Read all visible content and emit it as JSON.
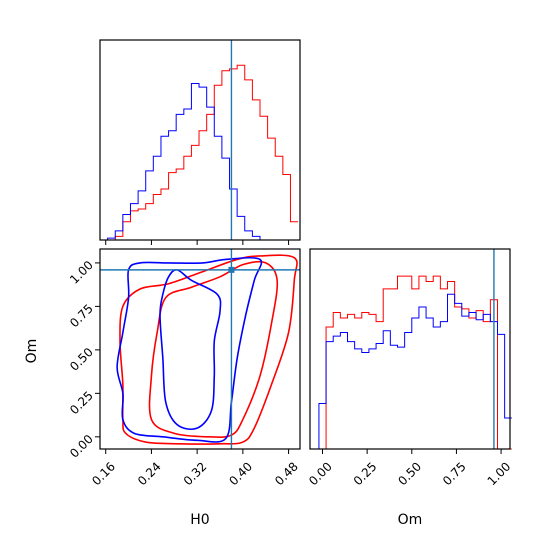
{
  "chart_data": {
    "type": "corner",
    "colors": {
      "red_series": "#ff0000",
      "blue_series": "#0000ff",
      "truth": "#1f77b4"
    },
    "truth": {
      "H0": 0.38,
      "Om": 0.96
    },
    "panels": [
      {
        "id": "H0-marginal",
        "type": "histogram",
        "xlim": [
          0.15,
          0.5
        ],
        "bin_edges": [
          0.15,
          0.1633,
          0.1767,
          0.19,
          0.2033,
          0.2167,
          0.23,
          0.2433,
          0.2567,
          0.27,
          0.2833,
          0.2967,
          0.31,
          0.3233,
          0.3367,
          0.35,
          0.3633,
          0.3767,
          0.39,
          0.4033,
          0.4167,
          0.43,
          0.4433,
          0.4567,
          0.47,
          0.4833,
          0.4967
        ],
        "series": [
          {
            "color": "red",
            "values": [
              0.0,
              0.0,
              0.02,
              0.1,
              0.16,
              0.17,
              0.2,
              0.25,
              0.28,
              0.37,
              0.39,
              0.46,
              0.52,
              0.6,
              0.69,
              0.85,
              0.93,
              0.94,
              0.96,
              0.88,
              0.77,
              0.68,
              0.56,
              0.46,
              0.36,
              0.1
            ]
          },
          {
            "color": "blue",
            "values": [
              0.0,
              0.01,
              0.05,
              0.14,
              0.2,
              0.27,
              0.38,
              0.46,
              0.57,
              0.6,
              0.69,
              0.72,
              0.86,
              0.84,
              0.73,
              0.57,
              0.45,
              0.28,
              0.13,
              0.05,
              0.02,
              0.0,
              0.0,
              0.0,
              0.0,
              0.0
            ]
          }
        ]
      },
      {
        "id": "H0-Om-joint",
        "type": "contour",
        "xlabel": "H0",
        "ylabel": "Om",
        "xlim": [
          0.15,
          0.5
        ],
        "ylim": [
          -0.07,
          1.08
        ],
        "xticks": [
          "0.16",
          "0.24",
          "0.32",
          "0.40",
          "0.48"
        ],
        "xtick_values": [
          0.16,
          0.24,
          0.32,
          0.4,
          0.48
        ],
        "yticks": [
          "0.00",
          "0.25",
          "0.50",
          "0.75",
          "1.00"
        ],
        "ytick_values": [
          0.0,
          0.25,
          0.5,
          0.75,
          1.0
        ],
        "contours": [
          {
            "color": "red",
            "level": "outer",
            "points": [
              [
                0.195,
                0.02
              ],
              [
                0.23,
                -0.03
              ],
              [
                0.29,
                -0.04
              ],
              [
                0.36,
                -0.04
              ],
              [
                0.4,
                -0.03
              ],
              [
                0.42,
                0.05
              ],
              [
                0.45,
                0.3
              ],
              [
                0.48,
                0.6
              ],
              [
                0.49,
                0.9
              ],
              [
                0.49,
                1.03
              ],
              [
                0.43,
                1.04
              ],
              [
                0.39,
                1.02
              ],
              [
                0.33,
                0.95
              ],
              [
                0.27,
                0.88
              ],
              [
                0.22,
                0.85
              ],
              [
                0.19,
                0.75
              ],
              [
                0.185,
                0.55
              ],
              [
                0.19,
                0.3
              ],
              [
                0.19,
                0.1
              ],
              [
                0.195,
                0.02
              ]
            ]
          },
          {
            "color": "red",
            "level": "inner",
            "points": [
              [
                0.24,
                0.1
              ],
              [
                0.28,
                0.02
              ],
              [
                0.34,
                0.0
              ],
              [
                0.38,
                0.01
              ],
              [
                0.4,
                0.1
              ],
              [
                0.43,
                0.35
              ],
              [
                0.45,
                0.65
              ],
              [
                0.46,
                0.9
              ],
              [
                0.44,
                1.0
              ],
              [
                0.4,
                0.99
              ],
              [
                0.36,
                0.92
              ],
              [
                0.31,
                0.86
              ],
              [
                0.265,
                0.8
              ],
              [
                0.25,
                0.6
              ],
              [
                0.24,
                0.35
              ],
              [
                0.24,
                0.1
              ]
            ]
          },
          {
            "color": "blue",
            "level": "outer",
            "points": [
              [
                0.19,
                0.1
              ],
              [
                0.21,
                0.02
              ],
              [
                0.26,
                0.0
              ],
              [
                0.32,
                -0.02
              ],
              [
                0.37,
                -0.01
              ],
              [
                0.38,
                0.2
              ],
              [
                0.39,
                0.45
              ],
              [
                0.405,
                0.7
              ],
              [
                0.42,
                0.9
              ],
              [
                0.43,
                1.02
              ],
              [
                0.37,
                1.02
              ],
              [
                0.33,
                1.0
              ],
              [
                0.27,
                1.0
              ],
              [
                0.22,
                1.0
              ],
              [
                0.2,
                0.96
              ],
              [
                0.2,
                0.8
              ],
              [
                0.19,
                0.6
              ],
              [
                0.18,
                0.4
              ],
              [
                0.19,
                0.25
              ],
              [
                0.19,
                0.1
              ]
            ]
          },
          {
            "color": "blue",
            "level": "inner",
            "points": [
              [
                0.255,
                0.7
              ],
              [
                0.26,
                0.45
              ],
              [
                0.265,
                0.2
              ],
              [
                0.285,
                0.07
              ],
              [
                0.32,
                0.05
              ],
              [
                0.345,
                0.15
              ],
              [
                0.35,
                0.35
              ],
              [
                0.35,
                0.55
              ],
              [
                0.36,
                0.72
              ],
              [
                0.355,
                0.82
              ],
              [
                0.31,
                0.9
              ],
              [
                0.285,
                0.96
              ],
              [
                0.27,
                0.92
              ],
              [
                0.26,
                0.82
              ],
              [
                0.255,
                0.7
              ]
            ]
          }
        ]
      },
      {
        "id": "Om-marginal",
        "type": "histogram",
        "xlabel": "Om",
        "xlim": [
          -0.07,
          1.05
        ],
        "xticks": [
          "0.00",
          "0.25",
          "0.50",
          "0.75",
          "1.00"
        ],
        "xtick_values": [
          0.0,
          0.25,
          0.5,
          0.75,
          1.0
        ],
        "bin_edges": [
          -0.06,
          -0.02,
          0.02,
          0.06,
          0.1,
          0.14,
          0.18,
          0.22,
          0.26,
          0.3,
          0.34,
          0.38,
          0.42,
          0.46,
          0.5,
          0.54,
          0.58,
          0.62,
          0.66,
          0.7,
          0.74,
          0.78,
          0.82,
          0.86,
          0.9,
          0.94,
          0.98,
          1.02,
          1.06
        ],
        "series": [
          {
            "color": "red",
            "values": [
              0.0,
              0.0,
              0.67,
              0.75,
              0.72,
              0.74,
              0.72,
              0.75,
              0.74,
              0.7,
              0.88,
              0.88,
              0.95,
              0.95,
              0.88,
              0.95,
              0.92,
              0.95,
              0.88,
              0.92,
              0.78,
              0.77,
              0.72,
              0.76,
              0.7,
              0.82,
              0.0,
              0.0
            ]
          },
          {
            "color": "blue",
            "values": [
              0.0,
              0.25,
              0.59,
              0.62,
              0.64,
              0.59,
              0.55,
              0.53,
              0.55,
              0.58,
              0.65,
              0.57,
              0.56,
              0.64,
              0.72,
              0.78,
              0.72,
              0.67,
              0.7,
              0.85,
              0.8,
              0.73,
              0.75,
              0.71,
              0.74,
              0.7,
              0.63,
              0.17
            ]
          }
        ]
      }
    ]
  }
}
